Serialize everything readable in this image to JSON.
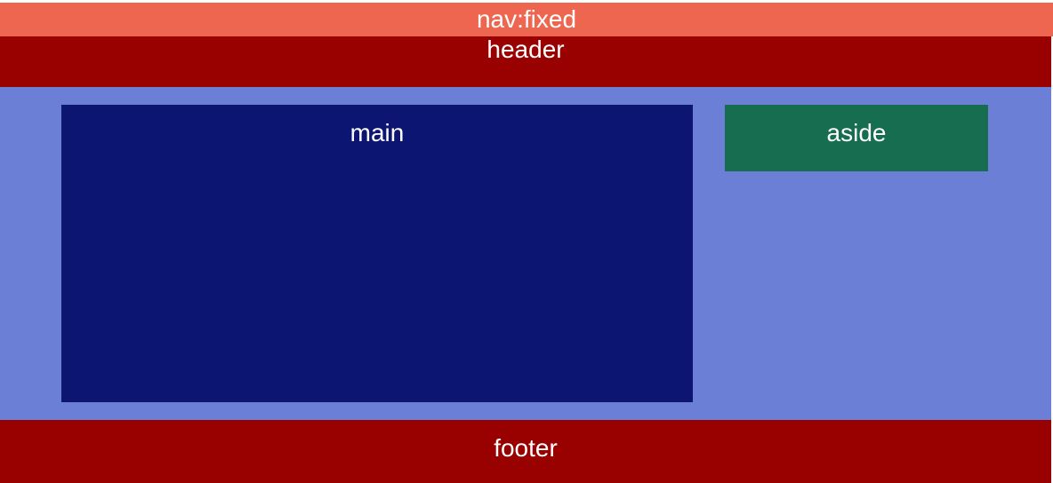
{
  "nav": {
    "label": "nav:fixed",
    "color": "#ee6650"
  },
  "header": {
    "label": "header",
    "color": "#990000"
  },
  "container": {
    "color": "#6b7fd6"
  },
  "main": {
    "label": "main",
    "color": "#0c1672"
  },
  "aside": {
    "label": "aside",
    "color": "#166d4f"
  },
  "footer": {
    "label": "footer",
    "color": "#990000"
  }
}
